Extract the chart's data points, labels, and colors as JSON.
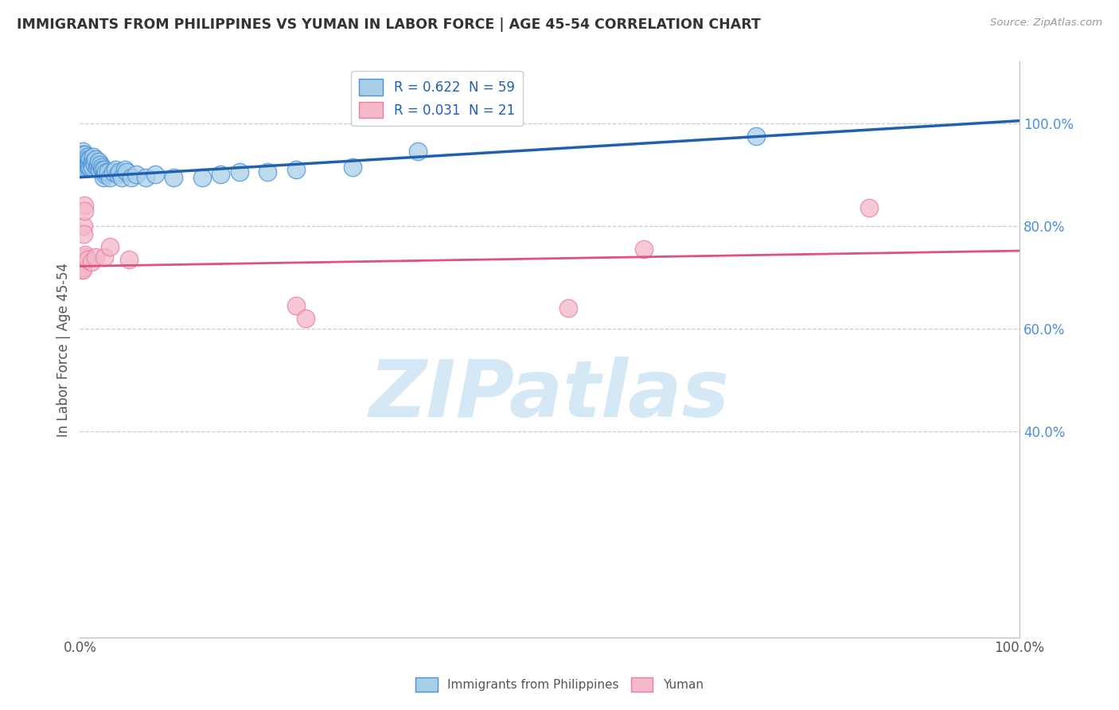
{
  "title": "IMMIGRANTS FROM PHILIPPINES VS YUMAN IN LABOR FORCE | AGE 45-54 CORRELATION CHART",
  "source": "Source: ZipAtlas.com",
  "ylabel": "In Labor Force | Age 45-54",
  "blue_r": "0.622",
  "blue_n": "59",
  "pink_r": "0.031",
  "pink_n": "21",
  "blue_color": "#a8cfe8",
  "pink_color": "#f4b8c8",
  "blue_edge_color": "#4a90d9",
  "pink_edge_color": "#e87fa0",
  "blue_line_color": "#2060b0",
  "pink_line_color": "#e05080",
  "right_axis_color": "#4a90d9",
  "grid_color": "#c8c8c8",
  "title_color": "#333333",
  "axis_label_color": "#555555",
  "bg_color": "#ffffff",
  "watermark_color": "#d5e8f5",
  "blue_scatter": [
    [
      0.001,
      0.935
    ],
    [
      0.002,
      0.94
    ],
    [
      0.003,
      0.945
    ],
    [
      0.004,
      0.94
    ],
    [
      0.004,
      0.92
    ],
    [
      0.005,
      0.93
    ],
    [
      0.005,
      0.94
    ],
    [
      0.006,
      0.925
    ],
    [
      0.006,
      0.915
    ],
    [
      0.007,
      0.93
    ],
    [
      0.007,
      0.92
    ],
    [
      0.008,
      0.935
    ],
    [
      0.008,
      0.92
    ],
    [
      0.009,
      0.915
    ],
    [
      0.009,
      0.93
    ],
    [
      0.01,
      0.925
    ],
    [
      0.01,
      0.92
    ],
    [
      0.011,
      0.93
    ],
    [
      0.011,
      0.915
    ],
    [
      0.012,
      0.92
    ],
    [
      0.013,
      0.925
    ],
    [
      0.013,
      0.915
    ],
    [
      0.014,
      0.935
    ],
    [
      0.015,
      0.925
    ],
    [
      0.016,
      0.92
    ],
    [
      0.017,
      0.93
    ],
    [
      0.018,
      0.915
    ],
    [
      0.019,
      0.92
    ],
    [
      0.02,
      0.925
    ],
    [
      0.021,
      0.91
    ],
    [
      0.022,
      0.92
    ],
    [
      0.023,
      0.915
    ],
    [
      0.024,
      0.91
    ],
    [
      0.025,
      0.895
    ],
    [
      0.026,
      0.91
    ],
    [
      0.027,
      0.9
    ],
    [
      0.028,
      0.905
    ],
    [
      0.03,
      0.905
    ],
    [
      0.032,
      0.895
    ],
    [
      0.035,
      0.905
    ],
    [
      0.038,
      0.91
    ],
    [
      0.04,
      0.9
    ],
    [
      0.042,
      0.905
    ],
    [
      0.045,
      0.895
    ],
    [
      0.048,
      0.91
    ],
    [
      0.05,
      0.905
    ],
    [
      0.055,
      0.895
    ],
    [
      0.06,
      0.9
    ],
    [
      0.07,
      0.895
    ],
    [
      0.08,
      0.9
    ],
    [
      0.1,
      0.895
    ],
    [
      0.13,
      0.895
    ],
    [
      0.15,
      0.9
    ],
    [
      0.17,
      0.905
    ],
    [
      0.2,
      0.905
    ],
    [
      0.23,
      0.91
    ],
    [
      0.29,
      0.915
    ],
    [
      0.36,
      0.945
    ],
    [
      0.72,
      0.975
    ]
  ],
  "pink_scatter": [
    [
      0.001,
      0.72
    ],
    [
      0.002,
      0.715
    ],
    [
      0.003,
      0.72
    ],
    [
      0.003,
      0.715
    ],
    [
      0.004,
      0.8
    ],
    [
      0.004,
      0.785
    ],
    [
      0.005,
      0.84
    ],
    [
      0.005,
      0.83
    ],
    [
      0.006,
      0.74
    ],
    [
      0.006,
      0.745
    ],
    [
      0.008,
      0.735
    ],
    [
      0.012,
      0.73
    ],
    [
      0.017,
      0.74
    ],
    [
      0.026,
      0.74
    ],
    [
      0.032,
      0.76
    ],
    [
      0.052,
      0.735
    ],
    [
      0.23,
      0.645
    ],
    [
      0.24,
      0.62
    ],
    [
      0.52,
      0.64
    ],
    [
      0.6,
      0.755
    ],
    [
      0.84,
      0.835
    ]
  ],
  "blue_trendline": [
    [
      0.0,
      0.895
    ],
    [
      1.0,
      1.005
    ]
  ],
  "pink_trendline": [
    [
      0.0,
      0.722
    ],
    [
      1.0,
      0.752
    ]
  ],
  "ylim_min": 0.0,
  "ylim_max": 1.12,
  "xlim_min": 0.0,
  "xlim_max": 1.0,
  "yticks": [
    1.0,
    0.8,
    0.6,
    0.4
  ],
  "ytick_labels": [
    "100.0%",
    "80.0%",
    "60.0%",
    "40.0%"
  ],
  "xtick_labels_left": "0.0%",
  "xtick_labels_right": "100.0%"
}
